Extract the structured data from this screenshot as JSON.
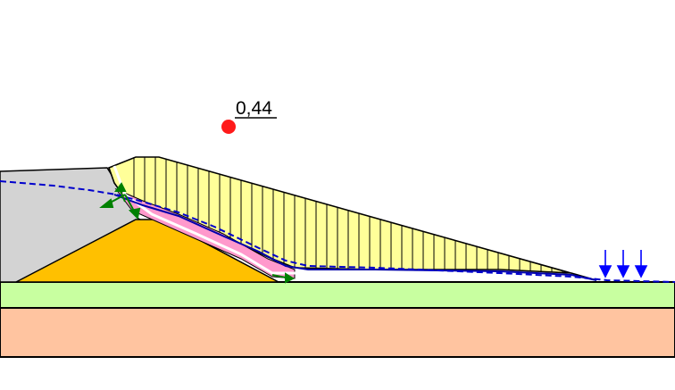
{
  "safety_factor": {
    "value_label": "0,44",
    "marker_color": "#ff1a1a"
  },
  "colors": {
    "background": "#ffffff",
    "embankment_fill": "#d3d3d3",
    "core_fill": "#ffc000",
    "slip_mass_fill": "#ffff99",
    "slip_band_fill": "#ff99cc",
    "upper_soil_layer": "#c8ffa0",
    "lower_soil_layer": "#ffc4a0",
    "water_table": "#0000cc",
    "load_arrows": "#0000ff",
    "force_vectors": "#008000",
    "outline": "#000000"
  },
  "icons": {
    "load_arrows": "down-arrow-icon",
    "force_vectors": "arrow-icon"
  }
}
